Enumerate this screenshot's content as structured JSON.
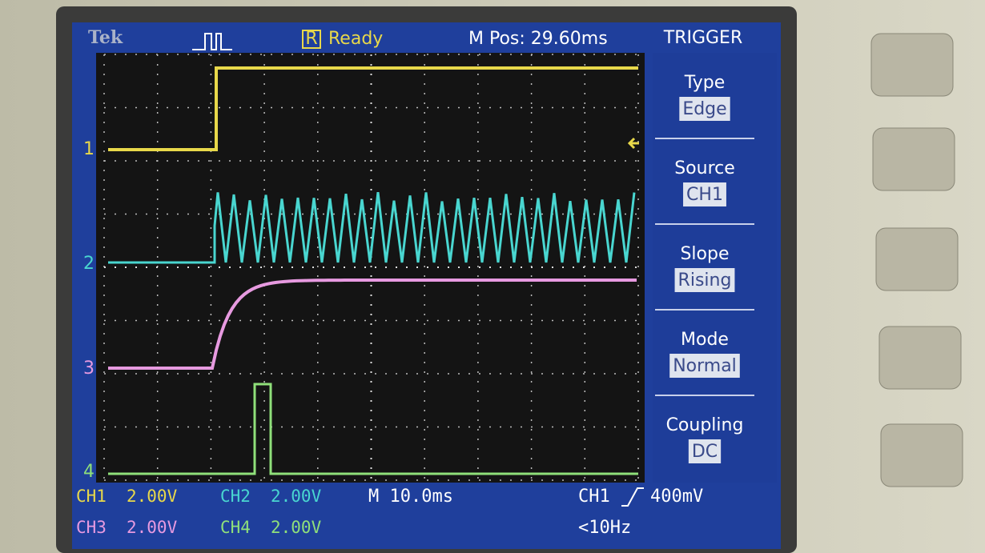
{
  "header": {
    "brand": "Tek",
    "status": "Ready",
    "position": "M Pos: 29.60ms"
  },
  "menu": {
    "title": "TRIGGER",
    "items": [
      {
        "label": "Type",
        "value": "Edge"
      },
      {
        "label": "Source",
        "value": "CH1"
      },
      {
        "label": "Slope",
        "value": "Rising"
      },
      {
        "label": "Mode",
        "value": "Normal"
      },
      {
        "label": "Coupling",
        "value": "DC"
      }
    ]
  },
  "channel_markers": [
    "1",
    "2",
    "3",
    "4"
  ],
  "readouts": {
    "channels": [
      {
        "name": "CH1",
        "scale": "2.00V"
      },
      {
        "name": "CH2",
        "scale": "2.00V"
      },
      {
        "name": "CH3",
        "scale": "2.00V"
      },
      {
        "name": "CH4",
        "scale": "2.00V"
      }
    ],
    "timebase": "M 10.0ms",
    "trigger_source": "CH1",
    "trigger_level": "400mV",
    "frequency": "<10Hz"
  }
}
